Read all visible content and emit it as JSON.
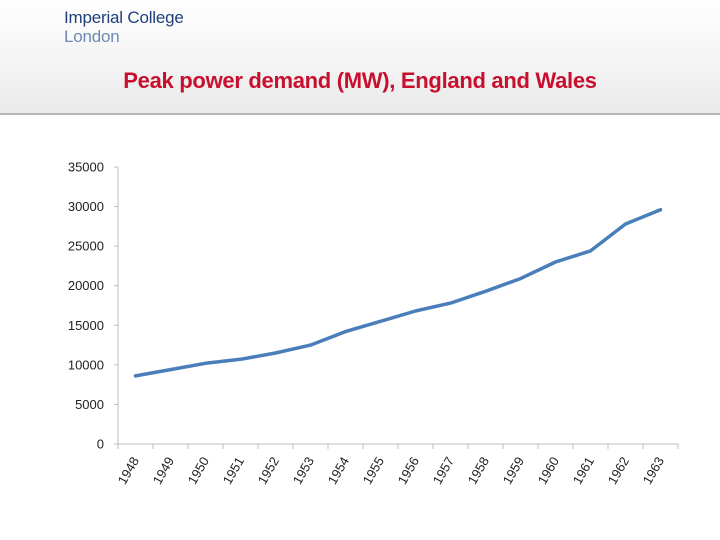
{
  "header": {
    "logo_line1": "Imperial College",
    "logo_line2": "London",
    "title": "Peak power demand (MW), England and Wales"
  },
  "colors": {
    "title": "#c8102e",
    "logo": "#1f3f7a",
    "line": "#4a7ebb",
    "axis": "#bfbfbf"
  },
  "chart_data": {
    "type": "line",
    "title": "Peak power demand (MW), England and Wales",
    "xlabel": "",
    "ylabel": "",
    "categories": [
      "1948",
      "1949",
      "1950",
      "1951",
      "1952",
      "1953",
      "1954",
      "1955",
      "1956",
      "1957",
      "1958",
      "1959",
      "1960",
      "1961",
      "1962",
      "1963"
    ],
    "ylim": [
      0,
      35000
    ],
    "yticks": [
      0,
      5000,
      10000,
      15000,
      20000,
      25000,
      30000,
      35000
    ],
    "grid": false,
    "series": [
      {
        "values": [
          8600,
          9400,
          10200,
          10700,
          11500,
          12500,
          14200,
          15500,
          16800,
          17800,
          19300,
          20900,
          23000,
          24400,
          27800,
          29600
        ]
      }
    ]
  }
}
